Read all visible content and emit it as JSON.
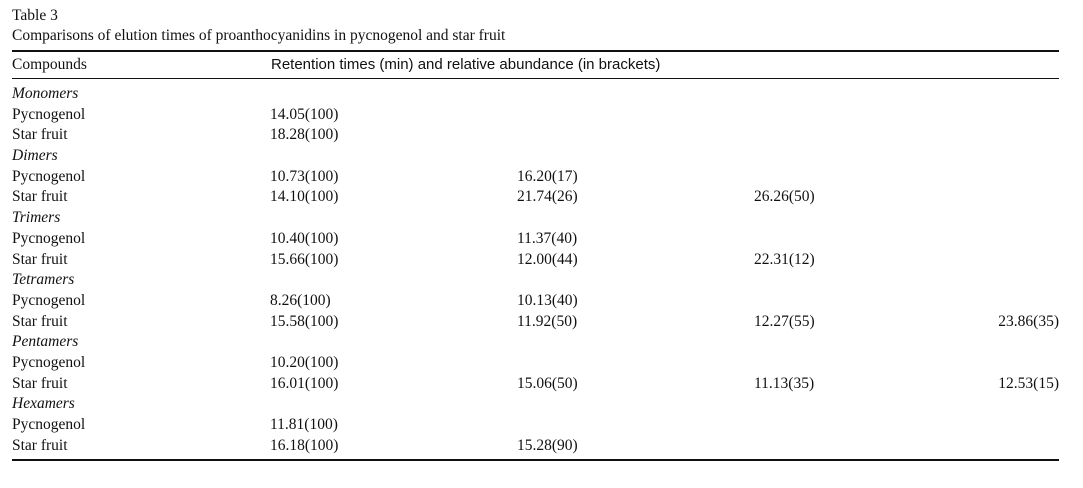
{
  "table": {
    "label": "Table 3",
    "title": "Comparisons of elution times of proanthocyanidins in pycnogenol and star fruit",
    "header": {
      "col_compounds": "Compounds",
      "col_retention": "Retention times (min) and relative abundance (in brackets)"
    },
    "groups": [
      {
        "name": "Monomers",
        "rows": [
          {
            "compound": "Pycnogenol",
            "values": [
              "14.05(100)",
              "",
              "",
              ""
            ]
          },
          {
            "compound": "Star fruit",
            "values": [
              "18.28(100)",
              "",
              "",
              ""
            ]
          }
        ]
      },
      {
        "name": "Dimers",
        "rows": [
          {
            "compound": "Pycnogenol",
            "values": [
              "10.73(100)",
              "16.20(17)",
              "",
              ""
            ]
          },
          {
            "compound": "Star fruit",
            "values": [
              "14.10(100)",
              "21.74(26)",
              "26.26(50)",
              ""
            ]
          }
        ]
      },
      {
        "name": "Trimers",
        "rows": [
          {
            "compound": "Pycnogenol",
            "values": [
              "10.40(100)",
              "11.37(40)",
              "",
              ""
            ]
          },
          {
            "compound": "Star fruit",
            "values": [
              "15.66(100)",
              "12.00(44)",
              "22.31(12)",
              ""
            ]
          }
        ]
      },
      {
        "name": "Tetramers",
        "rows": [
          {
            "compound": "Pycnogenol",
            "values": [
              "8.26(100)",
              "10.13(40)",
              "",
              ""
            ]
          },
          {
            "compound": "Star fruit",
            "values": [
              "15.58(100)",
              "11.92(50)",
              "12.27(55)",
              "23.86(35)"
            ]
          }
        ]
      },
      {
        "name": "Pentamers",
        "rows": [
          {
            "compound": "Pycnogenol",
            "values": [
              "10.20(100)",
              "",
              "",
              ""
            ]
          },
          {
            "compound": "Star fruit",
            "values": [
              "16.01(100)",
              "15.06(50)",
              "11.13(35)",
              "12.53(15)"
            ]
          }
        ]
      },
      {
        "name": "Hexamers",
        "rows": [
          {
            "compound": "Pycnogenol",
            "values": [
              "11.81(100)",
              "",
              "",
              ""
            ]
          },
          {
            "compound": "Star fruit",
            "values": [
              "16.18(100)",
              "15.28(90)",
              "",
              ""
            ]
          }
        ]
      }
    ]
  }
}
